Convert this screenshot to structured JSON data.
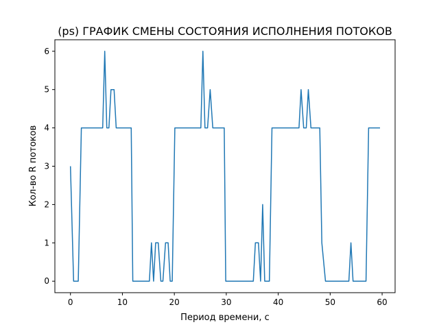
{
  "chart_data": {
    "type": "line",
    "title": "(ps) ГРАФИК СМЕНЫ СОСТОЯНИЯ ИСПОЛНЕНИЯ ПОТОКОВ",
    "xlabel": "Период времени, с",
    "ylabel": "Кол-во R потоков",
    "xlim": [
      -3.0,
      62.5
    ],
    "ylim": [
      -0.3,
      6.3
    ],
    "xticks": [
      0,
      10,
      20,
      30,
      40,
      50,
      60
    ],
    "yticks": [
      0,
      1,
      2,
      3,
      4,
      5,
      6
    ],
    "grid": false,
    "series": [
      {
        "color": "#1f77b4",
        "x": [
          0.0,
          0.6,
          1.5,
          2.1,
          6.2,
          6.6,
          7.0,
          7.4,
          7.8,
          8.4,
          8.8,
          9.3,
          11.7,
          12.0,
          15.2,
          15.6,
          16.0,
          16.4,
          16.9,
          17.4,
          17.8,
          18.3,
          18.8,
          19.2,
          19.6,
          20.1,
          20.6,
          25.1,
          25.5,
          25.9,
          26.4,
          26.9,
          27.4,
          27.8,
          29.6,
          29.9,
          35.2,
          35.6,
          36.2,
          36.6,
          37.0,
          37.4,
          38.3,
          38.8,
          44.0,
          44.4,
          44.9,
          45.4,
          45.8,
          46.3,
          48.0,
          48.4,
          49.1,
          53.6,
          54.0,
          54.4,
          56.9,
          57.4,
          59.6
        ],
        "values": [
          3,
          0,
          0,
          4,
          4,
          6,
          4,
          4,
          5,
          5,
          4,
          4,
          4,
          0,
          0,
          1,
          0,
          1,
          1,
          0,
          0,
          1,
          1,
          0,
          0,
          4,
          4,
          4,
          6,
          4,
          4,
          5,
          4,
          4,
          4,
          0,
          0,
          1,
          1,
          0,
          2,
          0,
          0,
          4,
          4,
          5,
          4,
          4,
          5,
          4,
          4,
          1,
          0,
          0,
          1,
          0,
          0,
          4,
          4
        ]
      }
    ]
  }
}
